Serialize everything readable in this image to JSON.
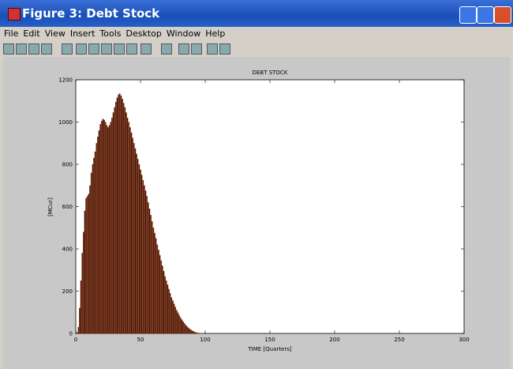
{
  "window": {
    "title": "Figure 3: Debt Stock",
    "menu": [
      "File",
      "Edit",
      "View",
      "Insert",
      "Tools",
      "Desktop",
      "Window",
      "Help"
    ]
  },
  "chart_data": {
    "type": "bar",
    "title": "DEBT STOCK",
    "xlabel": "TIME [Quarters]",
    "ylabel": "[MCur]",
    "color": "#3a1206",
    "edgecolor": "#a03a10",
    "x": [
      1,
      2,
      3,
      4,
      5,
      6,
      7,
      8,
      9,
      10,
      11,
      12,
      13,
      14,
      15,
      16,
      17,
      18,
      19,
      20,
      21,
      22,
      23,
      24,
      25,
      26,
      27,
      28,
      29,
      30,
      31,
      32,
      33,
      34,
      35,
      36,
      37,
      38,
      39,
      40,
      41,
      42,
      43,
      44,
      45,
      46,
      47,
      48,
      49,
      50,
      51,
      52,
      53,
      54,
      55,
      56,
      57,
      58,
      59,
      60,
      61,
      62,
      63,
      64,
      65,
      66,
      67,
      68,
      69,
      70,
      71,
      72,
      73,
      74,
      75,
      76,
      77,
      78,
      79,
      80,
      81,
      82,
      83,
      84,
      85,
      86,
      87,
      88,
      89,
      90,
      91,
      92,
      93,
      94,
      95
    ],
    "values": [
      5,
      30,
      120,
      250,
      380,
      480,
      580,
      640,
      650,
      660,
      700,
      760,
      800,
      830,
      860,
      900,
      930,
      960,
      990,
      1005,
      1015,
      1010,
      1000,
      985,
      975,
      985,
      1000,
      1020,
      1045,
      1070,
      1095,
      1115,
      1130,
      1135,
      1125,
      1110,
      1090,
      1070,
      1045,
      1020,
      1000,
      975,
      950,
      925,
      900,
      875,
      850,
      825,
      800,
      775,
      750,
      725,
      700,
      675,
      650,
      620,
      590,
      560,
      530,
      500,
      475,
      450,
      420,
      395,
      370,
      345,
      320,
      295,
      270,
      250,
      230,
      210,
      190,
      170,
      155,
      140,
      125,
      110,
      98,
      86,
      75,
      65,
      56,
      48,
      40,
      33,
      27,
      22,
      17,
      13,
      10,
      7,
      5,
      3,
      2
    ],
    "xlim": [
      0,
      300
    ],
    "xticks": [
      0,
      50,
      100,
      150,
      200,
      250,
      300
    ],
    "ylim": [
      0,
      1200
    ],
    "yticks": [
      0,
      200,
      400,
      600,
      800,
      1000,
      1200
    ]
  }
}
